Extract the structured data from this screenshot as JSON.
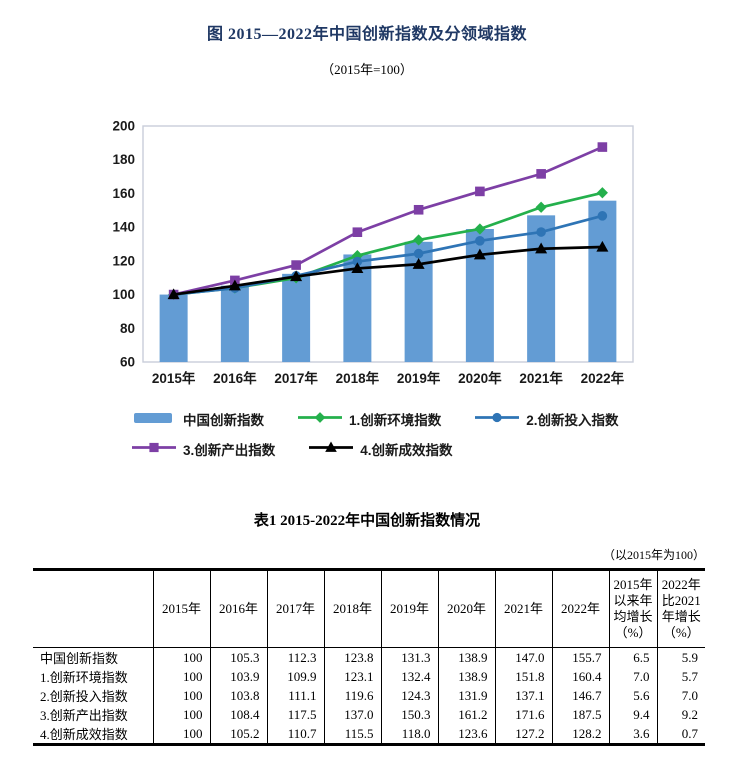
{
  "figure": {
    "title": "图 2015—2022年中国创新指数及分领域指数",
    "subtitle": "（2015年=100）",
    "title_color": "#1F3864"
  },
  "chart_data": {
    "type": "bar+line combo",
    "categories": [
      "2015年",
      "2016年",
      "2017年",
      "2018年",
      "2019年",
      "2020年",
      "2021年",
      "2022年"
    ],
    "bar_series": {
      "name": "中国创新指数",
      "values": [
        100,
        105.3,
        112.3,
        123.8,
        131.3,
        138.9,
        147.0,
        155.7
      ],
      "color": "#639CD4"
    },
    "line_series": [
      {
        "name": "1.创新环境指数",
        "values": [
          100,
          103.9,
          109.9,
          123.1,
          132.4,
          138.9,
          151.8,
          160.4
        ],
        "color": "#24B04C",
        "marker": "diamond"
      },
      {
        "name": "2.创新投入指数",
        "values": [
          100,
          103.8,
          111.1,
          119.6,
          124.3,
          131.9,
          137.1,
          146.7
        ],
        "color": "#2E74B5",
        "marker": "circle"
      },
      {
        "name": "3.创新产出指数",
        "values": [
          100,
          108.4,
          117.5,
          137.0,
          150.3,
          161.2,
          171.6,
          187.5
        ],
        "color": "#7D3FA5",
        "marker": "square"
      },
      {
        "name": "4.创新成效指数",
        "values": [
          100,
          105.2,
          110.7,
          115.5,
          118.0,
          123.6,
          127.2,
          128.2
        ],
        "color": "#000000",
        "marker": "triangle"
      }
    ],
    "ylim": [
      60,
      200
    ],
    "ytick_step": 20,
    "xlabel": "",
    "ylabel": "",
    "grid": false,
    "legend_position": "bottom",
    "plot_border_color": "#C9CEDA"
  },
  "table": {
    "title": "表1 2015-2022年中国创新指数情况",
    "note": "（以2015年为100）",
    "columns": [
      "",
      "2015年",
      "2016年",
      "2017年",
      "2018年",
      "2019年",
      "2020年",
      "2021年",
      "2022年",
      "2015年以来年均增长（%）",
      "2022年比2021年增长（%）"
    ],
    "rows": [
      [
        "中国创新指数",
        "100",
        "105.3",
        "112.3",
        "123.8",
        "131.3",
        "138.9",
        "147.0",
        "155.7",
        "6.5",
        "5.9"
      ],
      [
        "1.创新环境指数",
        "100",
        "103.9",
        "109.9",
        "123.1",
        "132.4",
        "138.9",
        "151.8",
        "160.4",
        "7.0",
        "5.7"
      ],
      [
        "2.创新投入指数",
        "100",
        "103.8",
        "111.1",
        "119.6",
        "124.3",
        "131.9",
        "137.1",
        "146.7",
        "5.6",
        "7.0"
      ],
      [
        "3.创新产出指数",
        "100",
        "108.4",
        "117.5",
        "137.0",
        "150.3",
        "161.2",
        "171.6",
        "187.5",
        "9.4",
        "9.2"
      ],
      [
        "4.创新成效指数",
        "100",
        "105.2",
        "110.7",
        "115.5",
        "118.0",
        "123.6",
        "127.2",
        "128.2",
        "3.6",
        "0.7"
      ]
    ]
  }
}
